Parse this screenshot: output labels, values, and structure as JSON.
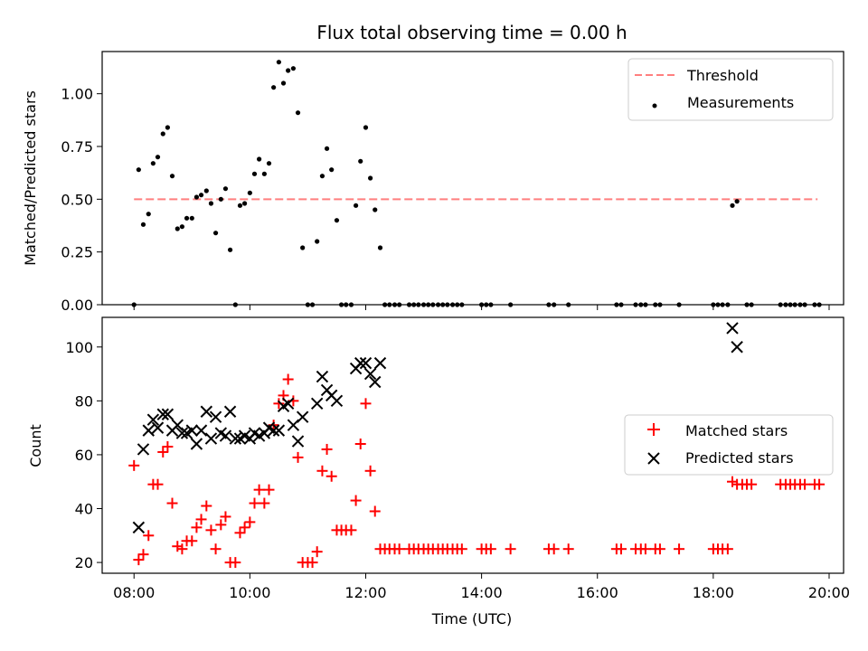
{
  "chart_data": [
    {
      "type": "scatter",
      "panel": "top",
      "title": "Flux total observing time = 0.00 h",
      "ylabel": "Matched/Predicted stars",
      "ylim": [
        0,
        1.2
      ],
      "yticks": [
        0.0,
        0.25,
        0.5,
        0.75,
        1.0
      ],
      "ytick_labels": [
        "0.00",
        "0.25",
        "0.50",
        "0.75",
        "1.00"
      ],
      "grid": false,
      "legend": "top-right",
      "series": [
        {
          "name": "Threshold",
          "kind": "dashed-line",
          "color": "#ff7f7f",
          "x": [
            8.0,
            19.8
          ],
          "y": [
            0.5,
            0.5
          ]
        },
        {
          "name": "Measurements",
          "kind": "dot",
          "color": "#000000",
          "points": [
            [
              8.0,
              0.0
            ],
            [
              8.08,
              0.64
            ],
            [
              8.16,
              0.38
            ],
            [
              8.25,
              0.43
            ],
            [
              8.33,
              0.67
            ],
            [
              8.41,
              0.7
            ],
            [
              8.5,
              0.81
            ],
            [
              8.58,
              0.84
            ],
            [
              8.66,
              0.61
            ],
            [
              8.75,
              0.36
            ],
            [
              8.83,
              0.37
            ],
            [
              8.91,
              0.41
            ],
            [
              9.0,
              0.41
            ],
            [
              9.08,
              0.51
            ],
            [
              9.16,
              0.52
            ],
            [
              9.25,
              0.54
            ],
            [
              9.33,
              0.48
            ],
            [
              9.41,
              0.34
            ],
            [
              9.5,
              0.5
            ],
            [
              9.58,
              0.55
            ],
            [
              9.66,
              0.26
            ],
            [
              9.75,
              0.0
            ],
            [
              9.83,
              0.47
            ],
            [
              9.91,
              0.48
            ],
            [
              10.0,
              0.53
            ],
            [
              10.08,
              0.62
            ],
            [
              10.16,
              0.69
            ],
            [
              10.25,
              0.62
            ],
            [
              10.33,
              0.67
            ],
            [
              10.41,
              1.03
            ],
            [
              10.5,
              1.15
            ],
            [
              10.58,
              1.05
            ],
            [
              10.66,
              1.11
            ],
            [
              10.75,
              1.12
            ],
            [
              10.83,
              0.91
            ],
            [
              10.91,
              0.27
            ],
            [
              11.0,
              0.0
            ],
            [
              11.08,
              0.0
            ],
            [
              11.16,
              0.3
            ],
            [
              11.25,
              0.61
            ],
            [
              11.33,
              0.74
            ],
            [
              11.41,
              0.64
            ],
            [
              11.5,
              0.4
            ],
            [
              11.58,
              0.0
            ],
            [
              11.66,
              0.0
            ],
            [
              11.75,
              0.0
            ],
            [
              11.83,
              0.47
            ],
            [
              11.91,
              0.68
            ],
            [
              12.0,
              0.84
            ],
            [
              12.08,
              0.6
            ],
            [
              12.16,
              0.45
            ],
            [
              12.25,
              0.27
            ],
            [
              12.33,
              0.0
            ],
            [
              12.41,
              0.0
            ],
            [
              12.5,
              0.0
            ],
            [
              12.58,
              0.0
            ],
            [
              12.75,
              0.0
            ],
            [
              12.83,
              0.0
            ],
            [
              12.91,
              0.0
            ],
            [
              13.0,
              0.0
            ],
            [
              13.08,
              0.0
            ],
            [
              13.16,
              0.0
            ],
            [
              13.25,
              0.0
            ],
            [
              13.33,
              0.0
            ],
            [
              13.41,
              0.0
            ],
            [
              13.5,
              0.0
            ],
            [
              13.58,
              0.0
            ],
            [
              13.66,
              0.0
            ],
            [
              14.0,
              0.0
            ],
            [
              14.08,
              0.0
            ],
            [
              14.16,
              0.0
            ],
            [
              14.5,
              0.0
            ],
            [
              15.16,
              0.0
            ],
            [
              15.25,
              0.0
            ],
            [
              15.5,
              0.0
            ],
            [
              16.33,
              0.0
            ],
            [
              16.41,
              0.0
            ],
            [
              16.66,
              0.0
            ],
            [
              16.75,
              0.0
            ],
            [
              16.83,
              0.0
            ],
            [
              17.0,
              0.0
            ],
            [
              17.08,
              0.0
            ],
            [
              17.41,
              0.0
            ],
            [
              18.0,
              0.0
            ],
            [
              18.08,
              0.0
            ],
            [
              18.16,
              0.0
            ],
            [
              18.25,
              0.0
            ],
            [
              18.33,
              0.47
            ],
            [
              18.41,
              0.49
            ],
            [
              18.58,
              0.0
            ],
            [
              18.66,
              0.0
            ],
            [
              19.16,
              0.0
            ],
            [
              19.25,
              0.0
            ],
            [
              19.33,
              0.0
            ],
            [
              19.41,
              0.0
            ],
            [
              19.5,
              0.0
            ],
            [
              19.58,
              0.0
            ],
            [
              19.75,
              0.0
            ],
            [
              19.83,
              0.0
            ]
          ]
        }
      ]
    },
    {
      "type": "scatter",
      "panel": "bottom",
      "xlabel": "Time (UTC)",
      "ylabel": "Count",
      "xlim": [
        7.45,
        20.25
      ],
      "ylim": [
        16,
        111
      ],
      "xticks": [
        8,
        10,
        12,
        14,
        16,
        18,
        20
      ],
      "xtick_labels": [
        "08:00",
        "10:00",
        "12:00",
        "14:00",
        "16:00",
        "18:00",
        "20:00"
      ],
      "yticks": [
        20,
        40,
        60,
        80,
        100
      ],
      "ytick_labels": [
        "20",
        "40",
        "60",
        "80",
        "100"
      ],
      "grid": false,
      "legend": "center-right",
      "series": [
        {
          "name": "Matched stars",
          "kind": "plus",
          "color": "#ff0000",
          "points": [
            [
              8.0,
              56
            ],
            [
              8.08,
              21
            ],
            [
              8.16,
              23
            ],
            [
              8.25,
              30
            ],
            [
              8.33,
              49
            ],
            [
              8.41,
              49
            ],
            [
              8.5,
              61
            ],
            [
              8.58,
              63
            ],
            [
              8.66,
              42
            ],
            [
              8.75,
              26
            ],
            [
              8.83,
              25
            ],
            [
              8.91,
              28
            ],
            [
              9.0,
              28
            ],
            [
              9.08,
              33
            ],
            [
              9.16,
              36
            ],
            [
              9.25,
              41
            ],
            [
              9.33,
              32
            ],
            [
              9.41,
              25
            ],
            [
              9.5,
              34
            ],
            [
              9.58,
              37
            ],
            [
              9.66,
              20
            ],
            [
              9.75,
              20
            ],
            [
              9.83,
              31
            ],
            [
              9.91,
              33
            ],
            [
              10.0,
              35
            ],
            [
              10.08,
              42
            ],
            [
              10.16,
              47
            ],
            [
              10.25,
              42
            ],
            [
              10.33,
              47
            ],
            [
              10.41,
              71
            ],
            [
              10.5,
              79
            ],
            [
              10.58,
              82
            ],
            [
              10.66,
              88
            ],
            [
              10.75,
              80
            ],
            [
              10.83,
              59
            ],
            [
              10.91,
              20
            ],
            [
              11.0,
              20
            ],
            [
              11.08,
              20
            ],
            [
              11.16,
              24
            ],
            [
              11.25,
              54
            ],
            [
              11.33,
              62
            ],
            [
              11.41,
              52
            ],
            [
              11.5,
              32
            ],
            [
              11.58,
              32
            ],
            [
              11.66,
              32
            ],
            [
              11.75,
              32
            ],
            [
              11.83,
              43
            ],
            [
              11.91,
              64
            ],
            [
              12.0,
              79
            ],
            [
              12.08,
              54
            ],
            [
              12.16,
              39
            ],
            [
              12.25,
              25
            ],
            [
              12.33,
              25
            ],
            [
              12.41,
              25
            ],
            [
              12.5,
              25
            ],
            [
              12.58,
              25
            ],
            [
              12.75,
              25
            ],
            [
              12.83,
              25
            ],
            [
              12.91,
              25
            ],
            [
              13.0,
              25
            ],
            [
              13.08,
              25
            ],
            [
              13.16,
              25
            ],
            [
              13.25,
              25
            ],
            [
              13.33,
              25
            ],
            [
              13.41,
              25
            ],
            [
              13.5,
              25
            ],
            [
              13.58,
              25
            ],
            [
              13.66,
              25
            ],
            [
              14.0,
              25
            ],
            [
              14.08,
              25
            ],
            [
              14.16,
              25
            ],
            [
              14.5,
              25
            ],
            [
              15.16,
              25
            ],
            [
              15.25,
              25
            ],
            [
              15.5,
              25
            ],
            [
              16.33,
              25
            ],
            [
              16.41,
              25
            ],
            [
              16.66,
              25
            ],
            [
              16.75,
              25
            ],
            [
              16.83,
              25
            ],
            [
              17.0,
              25
            ],
            [
              17.08,
              25
            ],
            [
              17.41,
              25
            ],
            [
              18.0,
              25
            ],
            [
              18.08,
              25
            ],
            [
              18.16,
              25
            ],
            [
              18.25,
              25
            ],
            [
              18.33,
              50
            ],
            [
              18.41,
              49
            ],
            [
              18.5,
              49
            ],
            [
              18.58,
              49
            ],
            [
              18.66,
              49
            ],
            [
              19.16,
              49
            ],
            [
              19.25,
              49
            ],
            [
              19.33,
              49
            ],
            [
              19.41,
              49
            ],
            [
              19.5,
              49
            ],
            [
              19.58,
              49
            ],
            [
              19.75,
              49
            ],
            [
              19.83,
              49
            ]
          ]
        },
        {
          "name": "Predicted stars",
          "kind": "cross",
          "color": "#000000",
          "points": [
            [
              8.08,
              33
            ],
            [
              8.16,
              62
            ],
            [
              8.25,
              69
            ],
            [
              8.33,
              73
            ],
            [
              8.41,
              70
            ],
            [
              8.5,
              75
            ],
            [
              8.58,
              75
            ],
            [
              8.66,
              69
            ],
            [
              8.75,
              71
            ],
            [
              8.83,
              68
            ],
            [
              8.91,
              68
            ],
            [
              9.0,
              69
            ],
            [
              9.08,
              64
            ],
            [
              9.16,
              69
            ],
            [
              9.25,
              76
            ],
            [
              9.33,
              66
            ],
            [
              9.41,
              74
            ],
            [
              9.5,
              68
            ],
            [
              9.58,
              67
            ],
            [
              9.66,
              76
            ],
            [
              9.75,
              66
            ],
            [
              9.83,
              66
            ],
            [
              9.91,
              67
            ],
            [
              10.0,
              66
            ],
            [
              10.08,
              68
            ],
            [
              10.16,
              67
            ],
            [
              10.25,
              68
            ],
            [
              10.33,
              70
            ],
            [
              10.41,
              69
            ],
            [
              10.5,
              69
            ],
            [
              10.58,
              78
            ],
            [
              10.66,
              79
            ],
            [
              10.75,
              71
            ],
            [
              10.83,
              65
            ],
            [
              10.91,
              74
            ],
            [
              11.16,
              79
            ],
            [
              11.25,
              89
            ],
            [
              11.33,
              84
            ],
            [
              11.41,
              82
            ],
            [
              11.5,
              80
            ],
            [
              11.83,
              92
            ],
            [
              11.91,
              94
            ],
            [
              12.0,
              94
            ],
            [
              12.08,
              90
            ],
            [
              12.16,
              87
            ],
            [
              12.25,
              94
            ],
            [
              18.33,
              107
            ],
            [
              18.41,
              100
            ]
          ]
        }
      ]
    }
  ]
}
